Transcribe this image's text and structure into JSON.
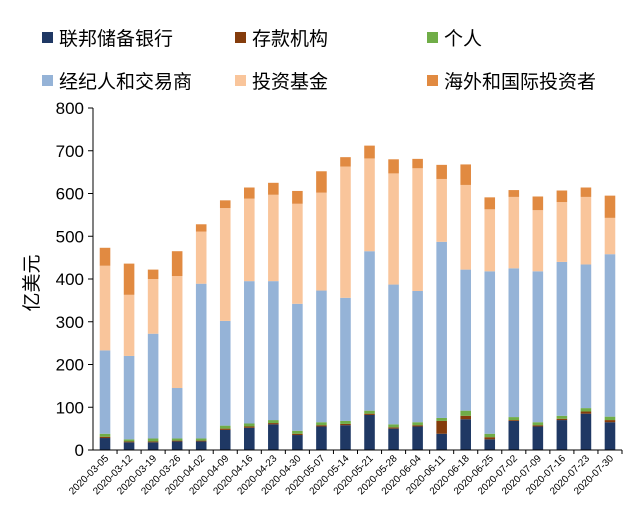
{
  "chart_data": {
    "type": "bar",
    "stacked": true,
    "title": "",
    "xlabel": "",
    "ylabel": "亿美元",
    "ylim": [
      0,
      800
    ],
    "yticks": [
      0,
      100,
      200,
      300,
      400,
      500,
      600,
      700,
      800
    ],
    "grid": false,
    "legend_position": "top",
    "categories": [
      "2020-03-05",
      "2020-03-12",
      "2020-03-19",
      "2020-03-26",
      "2020-04-02",
      "2020-04-09",
      "2020-04-16",
      "2020-04-23",
      "2020-04-30",
      "2020-05-07",
      "2020-05-14",
      "2020-05-21",
      "2020-05-28",
      "2020-06-04",
      "2020-06-11",
      "2020-06-18",
      "2020-06-25",
      "2020-07-02",
      "2020-07-09",
      "2020-07-16",
      "2020-07-23",
      "2020-07-30"
    ],
    "series": [
      {
        "name": "联邦储备银行",
        "color": "#1f3864",
        "values": [
          28,
          18,
          18,
          20,
          20,
          47,
          52,
          60,
          35,
          55,
          58,
          82,
          50,
          55,
          38,
          72,
          25,
          68,
          55,
          70,
          85,
          65
        ]
      },
      {
        "name": "存款机构",
        "color": "#843c0c",
        "values": [
          3,
          2,
          2,
          2,
          2,
          3,
          3,
          3,
          3,
          3,
          3,
          3,
          3,
          3,
          30,
          8,
          5,
          2,
          3,
          3,
          5,
          5
        ]
      },
      {
        "name": "个人",
        "color": "#70ad47",
        "values": [
          7,
          5,
          7,
          5,
          5,
          7,
          7,
          7,
          7,
          7,
          7,
          7,
          7,
          7,
          7,
          12,
          8,
          7,
          7,
          7,
          8,
          8
        ]
      },
      {
        "name": "经纪人和交易商",
        "color": "#95b3d7",
        "values": [
          195,
          195,
          245,
          118,
          362,
          245,
          333,
          325,
          297,
          308,
          288,
          373,
          327,
          307,
          412,
          330,
          380,
          348,
          353,
          360,
          336,
          380
        ]
      },
      {
        "name": "投资基金",
        "color": "#f9c59b",
        "values": [
          198,
          143,
          128,
          262,
          122,
          264,
          193,
          202,
          234,
          229,
          307,
          217,
          260,
          287,
          147,
          198,
          145,
          167,
          143,
          140,
          158,
          85
        ]
      },
      {
        "name": "海外和国际投资者",
        "color": "#e18a41",
        "values": [
          42,
          73,
          22,
          58,
          17,
          18,
          26,
          28,
          30,
          50,
          22,
          30,
          33,
          22,
          33,
          48,
          28,
          16,
          32,
          27,
          22,
          52
        ]
      }
    ]
  }
}
